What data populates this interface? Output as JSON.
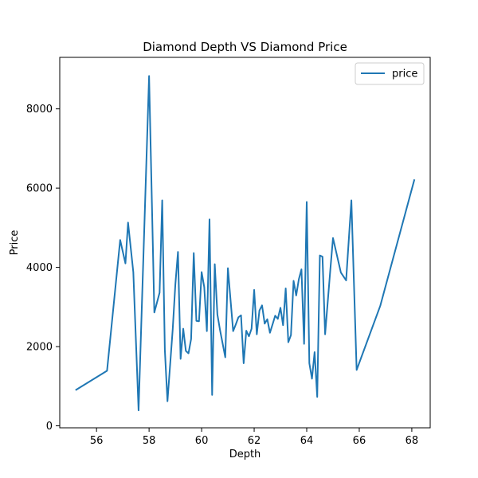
{
  "chart_data": {
    "type": "line",
    "title": "Diamond Depth VS Diamond Price",
    "xlabel": "Depth",
    "ylabel": "Price",
    "xlim": [
      54.6,
      68.7
    ],
    "ylim": [
      -50,
      9300
    ],
    "xticks": [
      56,
      58,
      60,
      62,
      64,
      66,
      68
    ],
    "yticks": [
      0,
      2000,
      4000,
      6000,
      8000
    ],
    "grid": false,
    "legend": "top-right",
    "colors": {
      "line": "#1f77b4"
    },
    "series": [
      {
        "name": "price",
        "x": [
          55.2,
          56.4,
          56.9,
          57.1,
          57.2,
          57.4,
          57.6,
          58.0,
          58.2,
          58.4,
          58.5,
          58.6,
          58.7,
          58.9,
          59.0,
          59.1,
          59.2,
          59.3,
          59.4,
          59.5,
          59.6,
          59.7,
          59.8,
          59.9,
          60.0,
          60.1,
          60.2,
          60.3,
          60.4,
          60.5,
          60.6,
          60.7,
          60.9,
          61.0,
          61.2,
          61.3,
          61.4,
          61.5,
          61.6,
          61.7,
          61.8,
          61.9,
          62.0,
          62.1,
          62.2,
          62.3,
          62.4,
          62.5,
          62.6,
          62.7,
          62.8,
          62.9,
          63.0,
          63.1,
          63.2,
          63.3,
          63.4,
          63.5,
          63.6,
          63.7,
          63.8,
          63.9,
          64.0,
          64.1,
          64.2,
          64.3,
          64.4,
          64.5,
          64.6,
          64.7,
          64.9,
          65.0,
          65.3,
          65.5,
          65.7,
          65.9,
          66.8,
          68.1
        ],
        "values": [
          900,
          1390,
          4690,
          4100,
          5130,
          3880,
          390,
          8830,
          2860,
          3360,
          5690,
          1920,
          620,
          2440,
          3570,
          4390,
          1690,
          2450,
          1890,
          1830,
          2190,
          4360,
          2650,
          2640,
          3880,
          3500,
          2390,
          5210,
          780,
          4080,
          2810,
          2420,
          1730,
          3980,
          2390,
          2560,
          2740,
          2790,
          1580,
          2400,
          2260,
          2450,
          3430,
          2310,
          2910,
          3040,
          2580,
          2690,
          2350,
          2560,
          2780,
          2700,
          2980,
          2540,
          3470,
          2110,
          2290,
          3660,
          3290,
          3700,
          3950,
          2070,
          5650,
          1580,
          1190,
          1860,
          730,
          4300,
          4270,
          2310,
          3950,
          4740,
          3870,
          3670,
          5690,
          1410,
          3030,
          6220
        ]
      }
    ]
  }
}
